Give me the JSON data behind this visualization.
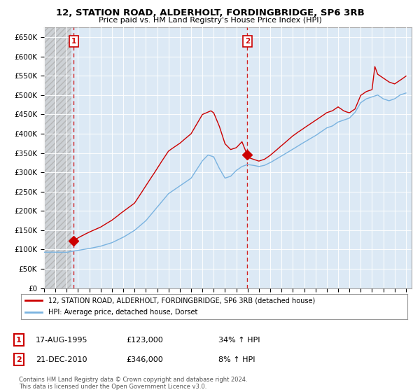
{
  "title": "12, STATION ROAD, ALDERHOLT, FORDINGBRIDGE, SP6 3RB",
  "subtitle": "Price paid vs. HM Land Registry's House Price Index (HPI)",
  "ylim": [
    0,
    675000
  ],
  "xlim": [
    1993.0,
    2025.5
  ],
  "yticks": [
    0,
    50000,
    100000,
    150000,
    200000,
    250000,
    300000,
    350000,
    400000,
    450000,
    500000,
    550000,
    600000,
    650000
  ],
  "ytick_labels": [
    "£0",
    "£50K",
    "£100K",
    "£150K",
    "£200K",
    "£250K",
    "£300K",
    "£350K",
    "£400K",
    "£450K",
    "£500K",
    "£550K",
    "£600K",
    "£650K"
  ],
  "sale1_date": 1995.62,
  "sale1_price": 123000,
  "sale2_date": 2010.97,
  "sale2_price": 346000,
  "hpi_color": "#7ab3e0",
  "price_color": "#cc0000",
  "bg_plot_color": "#dce9f5",
  "bg_hatch_color": "#d0d0d0",
  "grid_color": "#ffffff",
  "legend_price_label": "12, STATION ROAD, ALDERHOLT, FORDINGBRIDGE, SP6 3RB (detached house)",
  "legend_hpi_label": "HPI: Average price, detached house, Dorset",
  "ann1_box": "1",
  "ann1_date": "17-AUG-1995",
  "ann1_price": "£123,000",
  "ann1_hpi": "34% ↑ HPI",
  "ann2_box": "2",
  "ann2_date": "21-DEC-2010",
  "ann2_price": "£346,000",
  "ann2_hpi": "8% ↑ HPI",
  "footer": "Contains HM Land Registry data © Crown copyright and database right 2024.\nThis data is licensed under the Open Government Licence v3.0."
}
